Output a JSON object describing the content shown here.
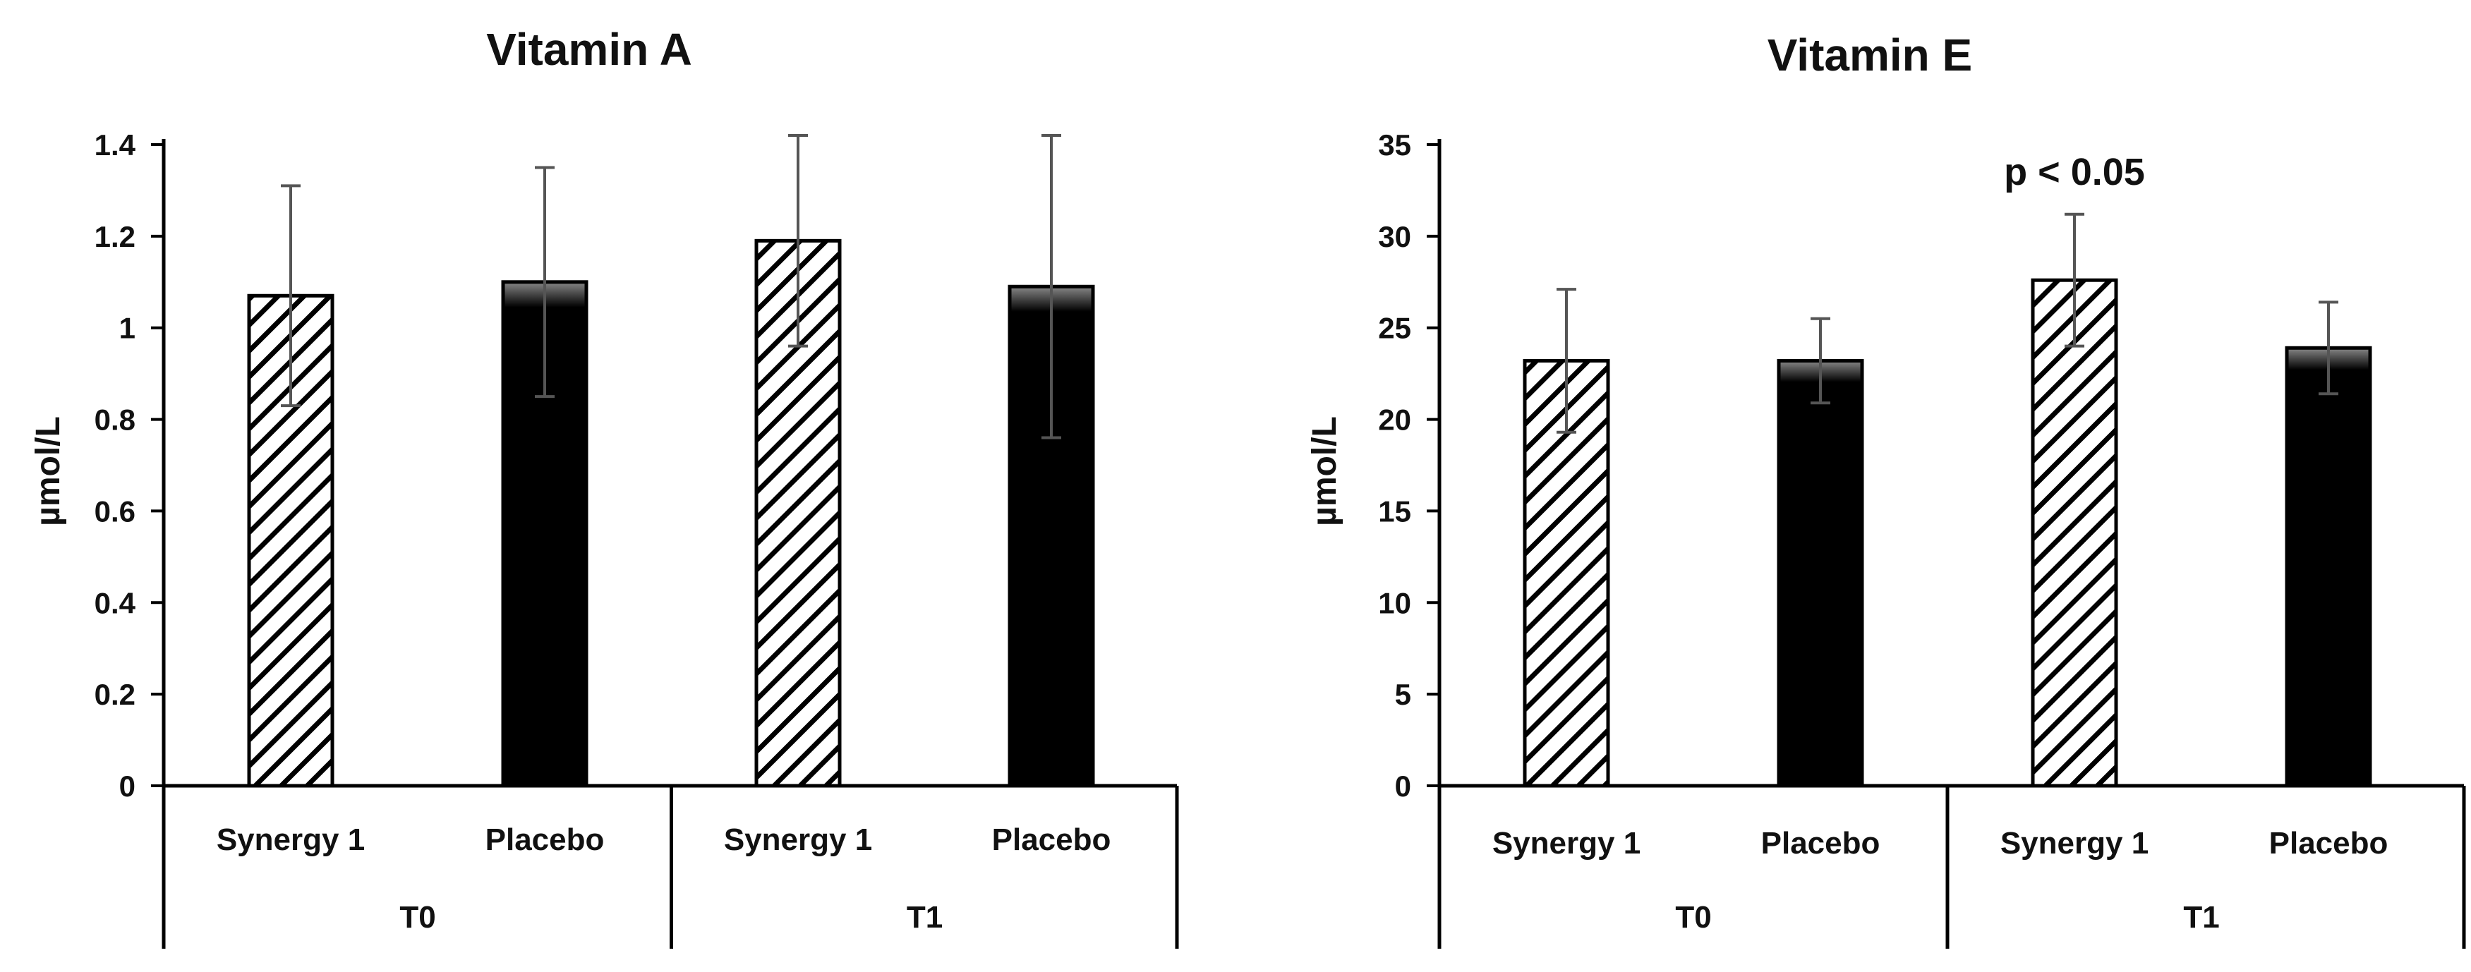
{
  "chart_data": [
    {
      "type": "bar",
      "title": "Vitamin A",
      "ylabel": "µmol/L",
      "xlabel": "",
      "ylim": [
        0,
        1.4
      ],
      "yticks": [
        0,
        0.2,
        0.4,
        0.6,
        0.8,
        1,
        1.2,
        1.4
      ],
      "ytick_labels": [
        "0",
        "0.2",
        "0.4",
        "0.6",
        "0.8",
        "1",
        "1.2",
        "1.4"
      ],
      "categories": [
        "Synergy 1",
        "Placebo",
        "Synergy 1",
        "Placebo"
      ],
      "groups": [
        {
          "label": "T0",
          "span": [
            0,
            1
          ]
        },
        {
          "label": "T1",
          "span": [
            2,
            3
          ]
        }
      ],
      "series": [
        {
          "name": "Synergy 1",
          "style": "hatched",
          "indices": [
            0,
            2
          ]
        },
        {
          "name": "Placebo",
          "style": "solid",
          "indices": [
            1,
            3
          ]
        }
      ],
      "values": [
        1.07,
        1.1,
        1.19,
        1.09
      ],
      "errors": [
        0.24,
        0.25,
        0.23,
        0.33
      ],
      "annotation": null
    },
    {
      "type": "bar",
      "title": "Vitamin E",
      "ylabel": "µmol/L",
      "xlabel": "",
      "ylim": [
        0,
        35
      ],
      "yticks": [
        0,
        5,
        10,
        15,
        20,
        25,
        30,
        35
      ],
      "ytick_labels": [
        "0",
        "5",
        "10",
        "15",
        "20",
        "25",
        "30",
        "35"
      ],
      "categories": [
        "Synergy 1",
        "Placebo",
        "Synergy 1",
        "Placebo"
      ],
      "groups": [
        {
          "label": "T0",
          "span": [
            0,
            1
          ]
        },
        {
          "label": "T1",
          "span": [
            2,
            3
          ]
        }
      ],
      "series": [
        {
          "name": "Synergy 1",
          "style": "hatched",
          "indices": [
            0,
            2
          ]
        },
        {
          "name": "Placebo",
          "style": "solid",
          "indices": [
            1,
            3
          ]
        }
      ],
      "values": [
        23.2,
        23.2,
        27.6,
        23.9
      ],
      "errors": [
        3.9,
        2.3,
        3.6,
        2.5
      ],
      "annotation": {
        "text": "p < 0.05",
        "x_index": 2,
        "y": 33.5
      }
    }
  ],
  "colors": {
    "solid_bar": "#000000",
    "hatch_line": "#000000",
    "error_bar": "#555555",
    "axis": "#000000"
  }
}
